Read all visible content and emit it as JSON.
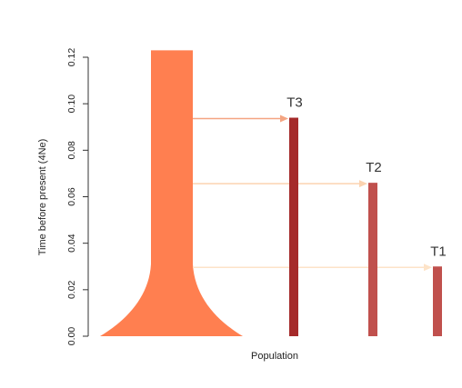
{
  "y_axis": {
    "label": "Time before present (4Ne)",
    "ticks": [
      {
        "value": 0.0,
        "label": "0.00"
      },
      {
        "value": 0.02,
        "label": "0.02"
      },
      {
        "value": 0.04,
        "label": "0.04"
      },
      {
        "value": 0.06,
        "label": "0.06"
      },
      {
        "value": 0.08,
        "label": "0.08"
      },
      {
        "value": 0.1,
        "label": "0.10"
      },
      {
        "value": 0.12,
        "label": "0.12"
      }
    ],
    "range": [
      0,
      0.12
    ]
  },
  "x_axis": {
    "label": "Population"
  },
  "colors": {
    "source_population": "#ff7f50",
    "t3_bar": "#a52a2a",
    "t2_bar": "#c0504d",
    "t1_bar": "#c0504d",
    "arrow_t3": "#f4a582",
    "arrow_t2": "#fbd3b0",
    "arrow_t1": "#fde3c8",
    "axis": "#333333",
    "text": "#222222"
  },
  "source_population": {
    "trunk_top_time": 0.123,
    "flare_start_time": 0.031,
    "base_time": 0.0
  },
  "events": [
    {
      "label": "T3",
      "time": 0.094,
      "color_key": "t3_bar",
      "arrow_color_key": "arrow_t3"
    },
    {
      "label": "T2",
      "time": 0.066,
      "color_key": "t2_bar",
      "arrow_color_key": "arrow_t2"
    },
    {
      "label": "T1",
      "time": 0.03,
      "color_key": "t1_bar",
      "arrow_color_key": "arrow_t1"
    }
  ]
}
